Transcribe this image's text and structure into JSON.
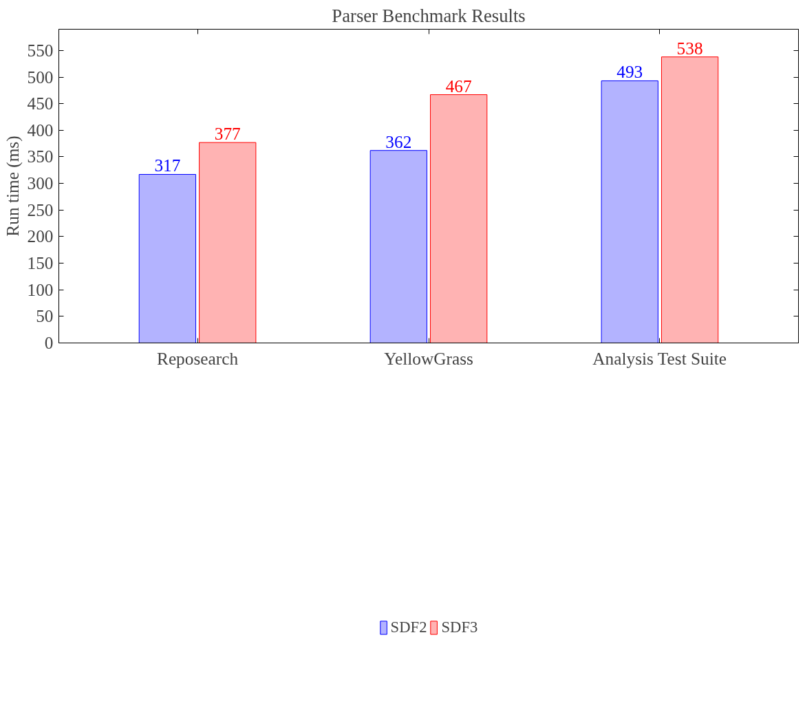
{
  "chart_data": {
    "type": "bar",
    "title": "Parser Benchmark Results",
    "ylabel": "Run time (ms)",
    "categories": [
      "Reposearch",
      "YellowGrass",
      "Analysis Test Suite"
    ],
    "series": [
      {
        "name": "SDF2",
        "color": "#b3b3ff",
        "values": [
          317,
          362,
          493
        ]
      },
      {
        "name": "SDF3",
        "color": "#ffb3b3",
        "values": [
          377,
          467,
          538
        ]
      }
    ],
    "ylim": [
      0,
      590
    ],
    "yticks": [
      0,
      50,
      100,
      150,
      200,
      250,
      300,
      350,
      400,
      450,
      500,
      550
    ],
    "data_labels": true,
    "legend": "bottom",
    "grid": false
  }
}
